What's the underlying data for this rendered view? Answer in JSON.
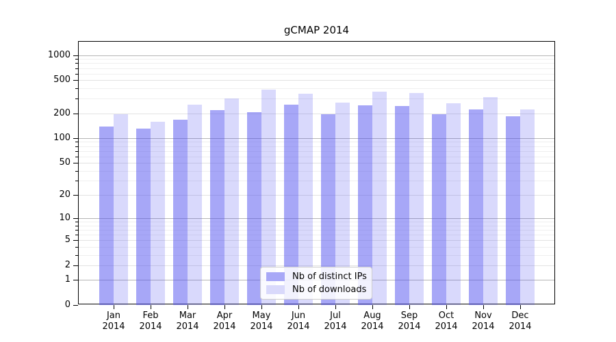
{
  "chart_data": {
    "type": "bar",
    "title": "gCMAP 2014",
    "scale": "log1p",
    "grid": "both",
    "legend_position": "lower-center",
    "xlabel": "",
    "ylabel": "",
    "categories": [
      "Jan",
      "Feb",
      "Mar",
      "Apr",
      "May",
      "Jun",
      "Jul",
      "Aug",
      "Sep",
      "Oct",
      "Nov",
      "Dec"
    ],
    "year": "2014",
    "series": [
      {
        "key": "ips",
        "name": "Nb of distinct IPs",
        "values": [
          138,
          131,
          168,
          220,
          206,
          256,
          196,
          248,
          246,
          196,
          222,
          184
        ]
      },
      {
        "key": "downloads",
        "name": "Nb of downloads",
        "values": [
          194,
          158,
          256,
          301,
          384,
          342,
          270,
          362,
          350,
          262,
          312,
          223
        ]
      }
    ],
    "ylim": [
      0,
      1450
    ],
    "yticks": [
      0,
      1,
      2,
      5,
      10,
      20,
      50,
      100,
      200,
      500,
      1000
    ],
    "ytick_labels": [
      "0",
      "1",
      "2",
      "5",
      "10",
      "20",
      "50",
      "100",
      "200",
      "500",
      "1000"
    ],
    "minor_gridlines": [
      3,
      4,
      6,
      7,
      8,
      9,
      30,
      40,
      60,
      70,
      80,
      90,
      300,
      400,
      600,
      700,
      800,
      900
    ]
  },
  "colors": {
    "bar_ips": "rgba(80,80,240,0.5)",
    "bar_downloads": "rgba(80,80,240,0.22)",
    "legend_swatch_ips": "#a8a8f7",
    "legend_swatch_downloads": "#d9d9fb",
    "grid_power10": "#b5b5b5",
    "grid_labeled": "#e2e2e2",
    "grid_minor": "#efefef",
    "axis": "#000000",
    "text": "#000000",
    "background": "#ffffff"
  }
}
